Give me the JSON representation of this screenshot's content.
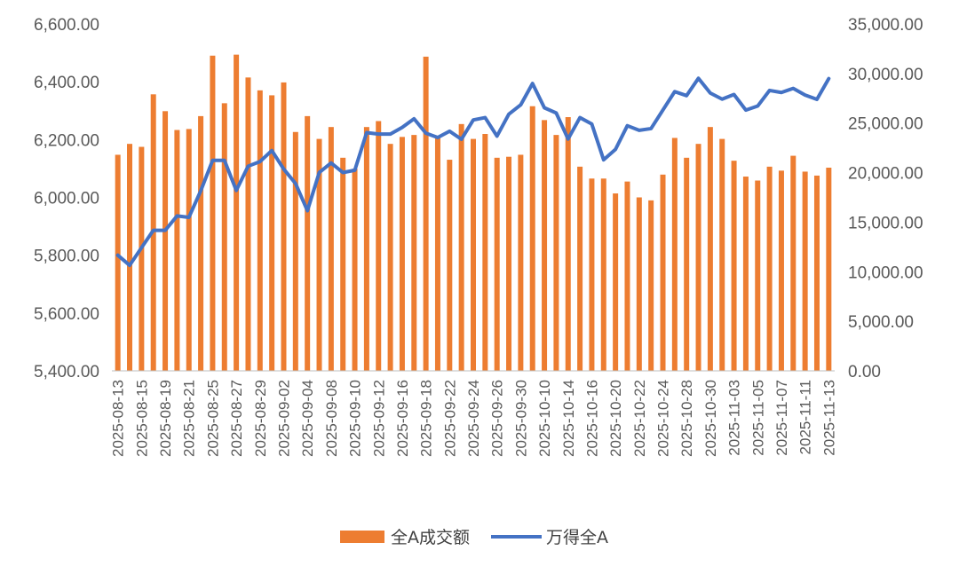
{
  "chart_data": {
    "type": "bar+line",
    "title": "",
    "x": [
      "2025-08-13",
      "2025-08-14",
      "2025-08-15",
      "2025-08-18",
      "2025-08-19",
      "2025-08-20",
      "2025-08-21",
      "2025-08-22",
      "2025-08-25",
      "2025-08-26",
      "2025-08-27",
      "2025-08-28",
      "2025-08-29",
      "2025-09-01",
      "2025-09-02",
      "2025-09-03",
      "2025-09-04",
      "2025-09-05",
      "2025-09-08",
      "2025-09-09",
      "2025-09-10",
      "2025-09-11",
      "2025-09-12",
      "2025-09-15",
      "2025-09-16",
      "2025-09-17",
      "2025-09-18",
      "2025-09-19",
      "2025-09-22",
      "2025-09-23",
      "2025-09-24",
      "2025-09-25",
      "2025-09-26",
      "2025-09-29",
      "2025-09-30",
      "2025-10-09",
      "2025-10-10",
      "2025-10-13",
      "2025-10-14",
      "2025-10-15",
      "2025-10-16",
      "2025-10-17",
      "2025-10-20",
      "2025-10-21",
      "2025-10-22",
      "2025-10-23",
      "2025-10-24",
      "2025-10-27",
      "2025-10-28",
      "2025-10-29",
      "2025-10-30",
      "2025-10-31",
      "2025-11-03",
      "2025-11-04",
      "2025-11-05",
      "2025-11-06",
      "2025-11-07",
      "2025-11-10",
      "2025-11-11",
      "2025-11-12",
      "2025-11-13"
    ],
    "x_tick_labels": [
      "2025-08-13",
      "2025-08-15",
      "2025-08-19",
      "2025-08-21",
      "2025-08-25",
      "2025-08-27",
      "2025-08-29",
      "2025-09-02",
      "2025-09-04",
      "2025-09-08",
      "2025-09-10",
      "2025-09-12",
      "2025-09-16",
      "2025-09-18",
      "2025-09-22",
      "2025-09-24",
      "2025-09-26",
      "2025-09-30",
      "2025-10-10",
      "2025-10-14",
      "2025-10-16",
      "2025-10-20",
      "2025-10-22",
      "2025-10-24",
      "2025-10-28",
      "2025-10-30",
      "2025-11-03",
      "2025-11-05",
      "2025-11-07",
      "2025-11-11",
      "2025-11-13"
    ],
    "series": [
      {
        "name": "全A成交额",
        "type": "bar",
        "axis": "right",
        "color": "#ED7D31",
        "values": [
          21800,
          22900,
          22600,
          27900,
          26200,
          24300,
          24400,
          25700,
          31800,
          27000,
          31900,
          29600,
          28300,
          27800,
          29100,
          24100,
          25700,
          23400,
          24600,
          21500,
          20400,
          24600,
          25200,
          22900,
          23600,
          23800,
          31700,
          23700,
          21300,
          24900,
          23400,
          23900,
          21500,
          21600,
          21800,
          26700,
          25300,
          23800,
          25600,
          20600,
          19400,
          19400,
          17900,
          19100,
          17500,
          17200,
          19800,
          23500,
          21500,
          22900,
          24600,
          23400,
          21200,
          19600,
          19200,
          20600,
          20200,
          21700,
          20100,
          19700,
          20500
        ]
      },
      {
        "name": "万得全A",
        "type": "line",
        "axis": "left",
        "color": "#4472C4",
        "values": [
          5800,
          5765,
          5826,
          5886,
          5886,
          5936,
          5931,
          6023,
          6128,
          6128,
          6024,
          6108,
          6124,
          6162,
          6098,
          6048,
          5954,
          6086,
          6119,
          6086,
          6094,
          6224,
          6219,
          6219,
          6242,
          6272,
          6222,
          6207,
          6229,
          6201,
          6268,
          6276,
          6212,
          6288,
          6320,
          6394,
          6310,
          6292,
          6202,
          6276,
          6254,
          6130,
          6166,
          6248,
          6232,
          6238,
          6302,
          6366,
          6352,
          6412,
          6361,
          6340,
          6356,
          6302,
          6316,
          6370,
          6363,
          6377,
          6354,
          6339,
          6411
        ]
      }
    ],
    "y_left": {
      "range": [
        5400,
        6600
      ],
      "ticks": [
        "5,400.00",
        "5,600.00",
        "5,800.00",
        "6,000.00",
        "6,200.00",
        "6,400.00",
        "6,600.00"
      ]
    },
    "y_right": {
      "range": [
        0,
        35000
      ],
      "ticks": [
        "0.00",
        "5,000.00",
        "10,000.00",
        "15,000.00",
        "20,000.00",
        "25,000.00",
        "30,000.00",
        "35,000.00"
      ]
    },
    "grid": false,
    "legend_position": "bottom"
  }
}
